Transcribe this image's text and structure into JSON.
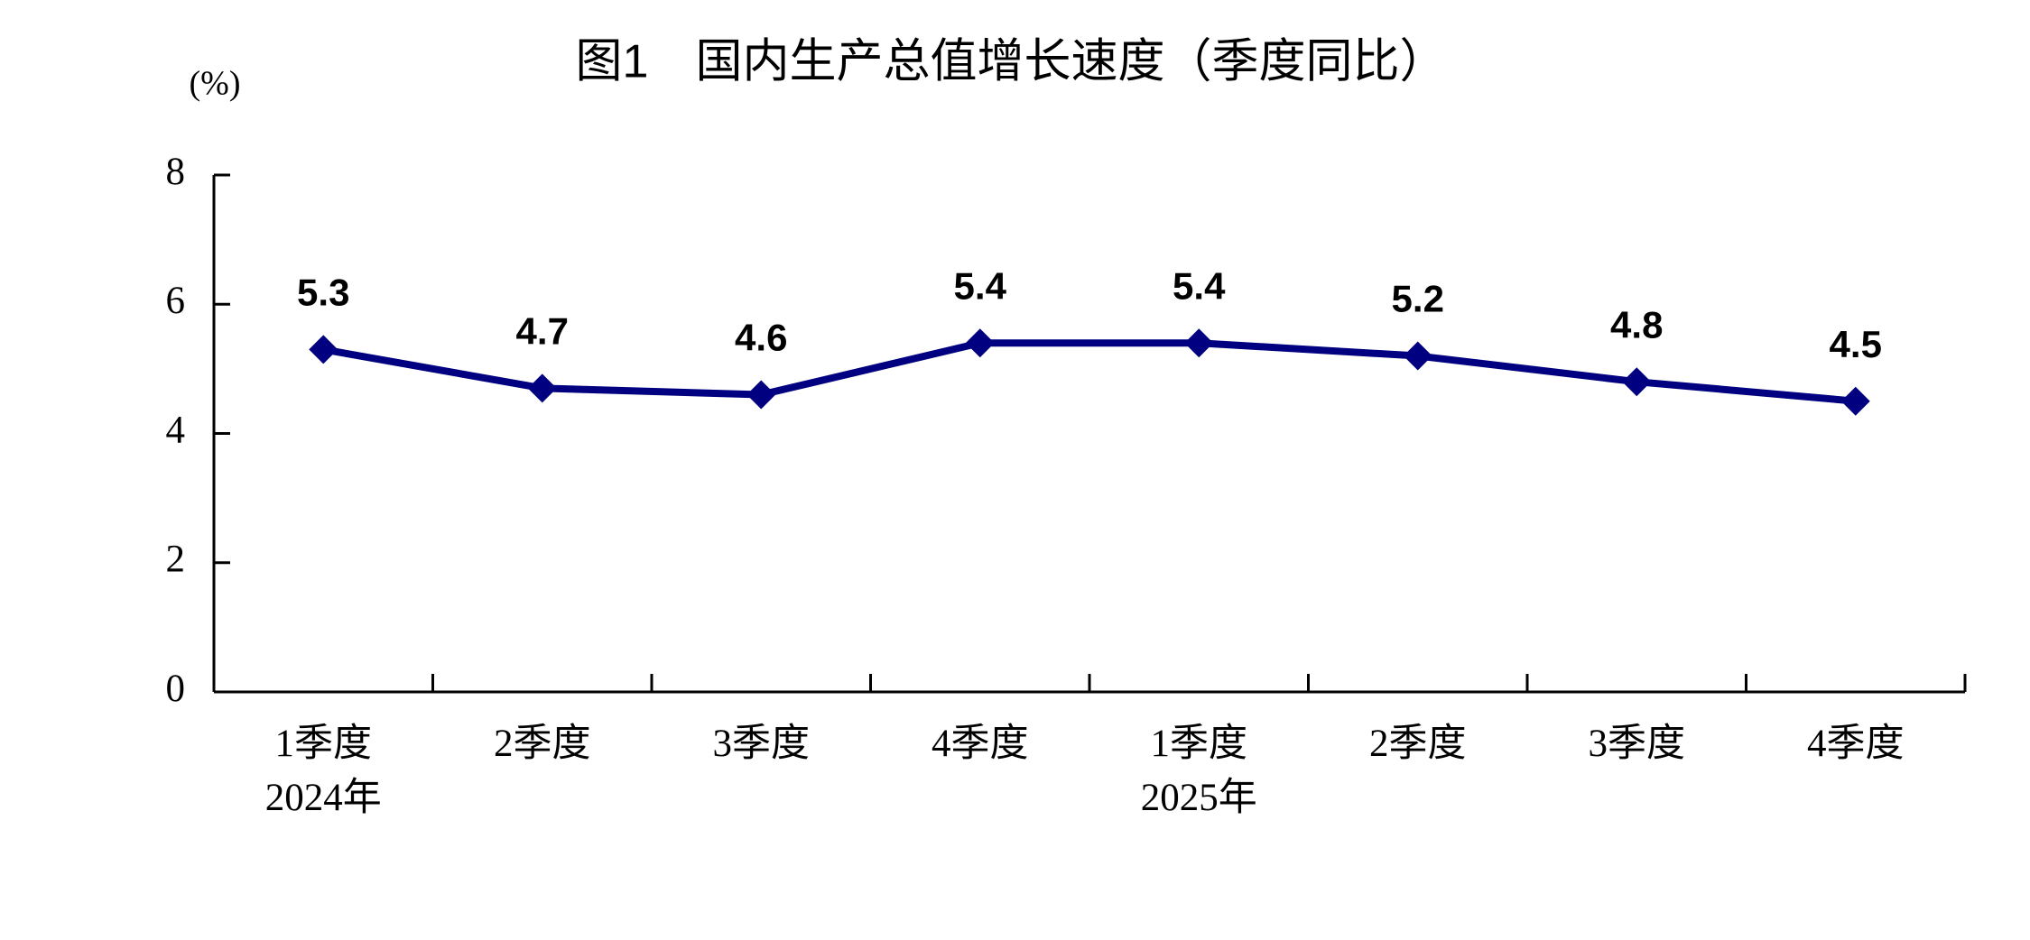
{
  "chart_data": {
    "type": "line",
    "title": "图1　国内生产总值增长速度（季度同比）",
    "y_label": "(%)",
    "categories": [
      "1季度",
      "2季度",
      "3季度",
      "4季度",
      "1季度",
      "2季度",
      "3季度",
      "4季度"
    ],
    "category_groups": [
      "2024年",
      null,
      null,
      null,
      "2025年",
      null,
      null,
      null
    ],
    "series": [
      {
        "color": "#000080",
        "values": [
          5.3,
          4.7,
          4.6,
          5.4,
          5.4,
          5.2,
          4.8,
          4.5
        ]
      }
    ],
    "ylim": [
      0,
      8
    ],
    "yticks": [
      0,
      2,
      4,
      6,
      8
    ],
    "grid": false,
    "data_labels": true
  }
}
